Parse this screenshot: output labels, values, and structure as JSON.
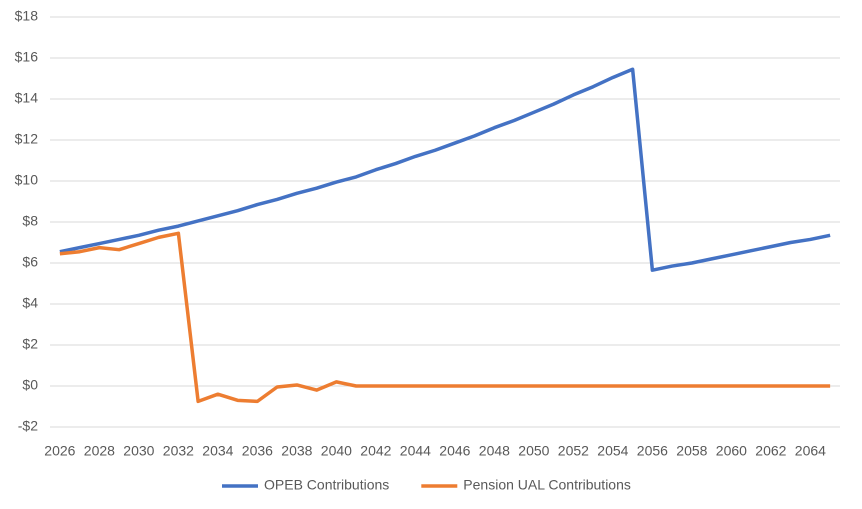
{
  "chart_data": {
    "type": "line",
    "categories": [
      "2026",
      null,
      "2028",
      null,
      "2030",
      null,
      "2032",
      null,
      "2034",
      null,
      "2036",
      null,
      "2038",
      null,
      "2040",
      null,
      "2042",
      null,
      "2044",
      null,
      "2046",
      null,
      "2048",
      null,
      "2050",
      null,
      "2052",
      null,
      "2054",
      null,
      "2056",
      null,
      "2058",
      null,
      "2060",
      null,
      "2062",
      null,
      "2064",
      null
    ],
    "series": [
      {
        "name": "OPEB Contributions",
        "color": "#4472c4",
        "values": [
          6.55,
          6.75,
          6.95,
          7.15,
          7.35,
          7.6,
          7.8,
          8.05,
          8.3,
          8.55,
          8.85,
          9.1,
          9.4,
          9.65,
          9.95,
          10.2,
          10.55,
          10.85,
          11.2,
          11.5,
          11.85,
          12.2,
          12.6,
          12.95,
          13.35,
          13.75,
          14.2,
          14.6,
          15.05,
          15.45,
          5.65,
          5.85,
          6.0,
          6.2,
          6.4,
          6.6,
          6.8,
          7.0,
          7.15,
          7.35
        ]
      },
      {
        "name": "Pension UAL Contributions",
        "color": "#ed7d31",
        "values": [
          6.45,
          6.55,
          6.75,
          6.65,
          6.95,
          7.25,
          7.45,
          -0.75,
          -0.4,
          -0.7,
          -0.75,
          -0.05,
          0.05,
          -0.2,
          0.2,
          0,
          0,
          0,
          0,
          0,
          0,
          0,
          0,
          0,
          0,
          0,
          0,
          0,
          0,
          0,
          0,
          0,
          0,
          0,
          0,
          0,
          0,
          0,
          0,
          0
        ]
      }
    ],
    "ylim": [
      -2,
      18
    ],
    "yticks": [
      {
        "value": -2,
        "label": "-$2"
      },
      {
        "value": 0,
        "label": "$0"
      },
      {
        "value": 2,
        "label": "$2"
      },
      {
        "value": 4,
        "label": "$4"
      },
      {
        "value": 6,
        "label": "$6"
      },
      {
        "value": 8,
        "label": "$8"
      },
      {
        "value": 10,
        "label": "$10"
      },
      {
        "value": 12,
        "label": "$12"
      },
      {
        "value": 14,
        "label": "$14"
      },
      {
        "value": 16,
        "label": "$16"
      },
      {
        "value": 18,
        "label": "$18"
      }
    ],
    "grid": true,
    "legend": "bottom"
  }
}
